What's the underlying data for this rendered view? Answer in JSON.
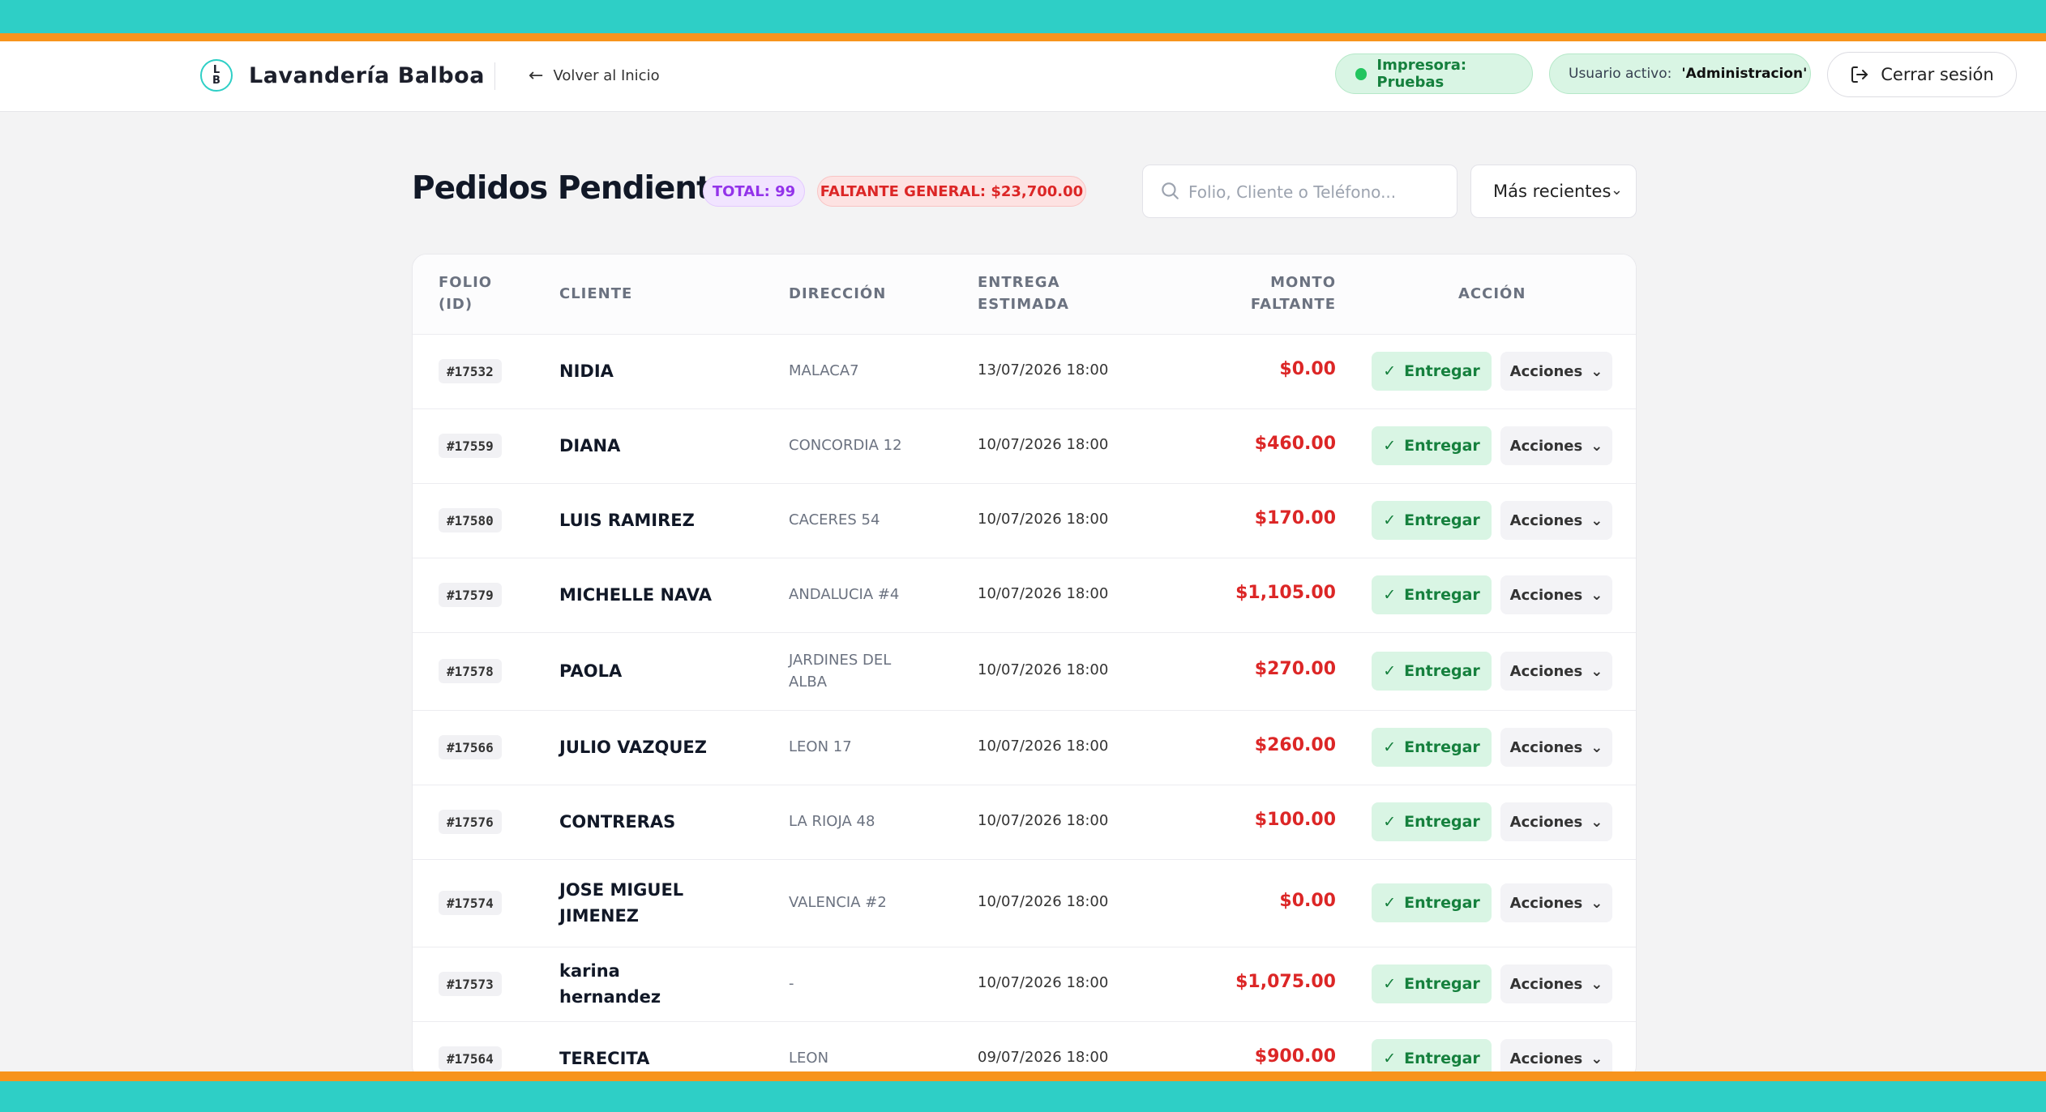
{
  "header": {
    "logo_letters": [
      "L",
      "B"
    ],
    "brand": "Lavandería Balboa",
    "back_label": "Volver al Inicio",
    "printer_label": "Impresora: Pruebas",
    "user_prefix": "Usuario activo:",
    "user_name": "'Administracion'",
    "logout_label": "Cerrar sesión"
  },
  "page": {
    "title": "Pedidos Pendientes",
    "total_badge": "TOTAL: 99",
    "faltante_badge": "FALTANTE GENERAL: $23,700.00",
    "search_placeholder": "Folio, Cliente o Teléfono...",
    "sort_value": "Más recientes"
  },
  "table": {
    "columns": {
      "folio": [
        "FOLIO",
        "(ID)"
      ],
      "cliente": "CLIENTE",
      "direccion": "DIRECCIÓN",
      "entrega": [
        "ENTREGA",
        "ESTIMADA"
      ],
      "monto": [
        "MONTO",
        "FALTANTE"
      ],
      "accion": "ACCIÓN"
    },
    "entregar_label": "Entregar",
    "acciones_label": "Acciones",
    "rows": [
      {
        "folio": "#17532",
        "cliente": "NIDIA",
        "direccion": "MALACA7",
        "entrega": "13/07/2026 18:00",
        "monto": "$0.00"
      },
      {
        "folio": "#17559",
        "cliente": "DIANA",
        "direccion": "CONCORDIA 12",
        "entrega": "10/07/2026 18:00",
        "monto": "$460.00"
      },
      {
        "folio": "#17580",
        "cliente": "LUIS RAMIREZ",
        "direccion": "CACERES 54",
        "entrega": "10/07/2026 18:00",
        "monto": "$170.00"
      },
      {
        "folio": "#17579",
        "cliente": "MICHELLE NAVA",
        "direccion": "ANDALUCIA #4",
        "entrega": "10/07/2026 18:00",
        "monto": "$1,105.00"
      },
      {
        "folio": "#17578",
        "cliente": "PAOLA",
        "direccion": "JARDINES DEL ALBA",
        "entrega": "10/07/2026 18:00",
        "monto": "$270.00"
      },
      {
        "folio": "#17566",
        "cliente": "JULIO VAZQUEZ",
        "direccion": "LEON 17",
        "entrega": "10/07/2026 18:00",
        "monto": "$260.00"
      },
      {
        "folio": "#17576",
        "cliente": "CONTRERAS",
        "direccion": "LA RIOJA 48",
        "entrega": "10/07/2026 18:00",
        "monto": "$100.00"
      },
      {
        "folio": "#17574",
        "cliente": "JOSE MIGUEL JIMENEZ",
        "direccion": "VALENCIA #2",
        "entrega": "10/07/2026 18:00",
        "monto": "$0.00"
      },
      {
        "folio": "#17573",
        "cliente": "karina hernandez",
        "direccion": "-",
        "entrega": "10/07/2026 18:00",
        "monto": "$1,075.00"
      },
      {
        "folio": "#17564",
        "cliente": "TERECITA",
        "direccion": "LEON",
        "entrega": "09/07/2026 18:00",
        "monto": "$900.00"
      }
    ]
  },
  "icons": {
    "logo": "laundry-logo-icon",
    "back": "arrow-left-icon",
    "printer_status": "status-dot-icon",
    "logout": "logout-icon",
    "search": "search-icon",
    "sort": "chevron-down-icon",
    "entregar": "check-icon",
    "acciones": "chevron-down-icon"
  },
  "colors": {
    "band_teal": "#2ecfc6",
    "band_orange": "#f7941d",
    "success": "#15803d",
    "danger": "#dc2626",
    "purple": "#9333ea"
  }
}
